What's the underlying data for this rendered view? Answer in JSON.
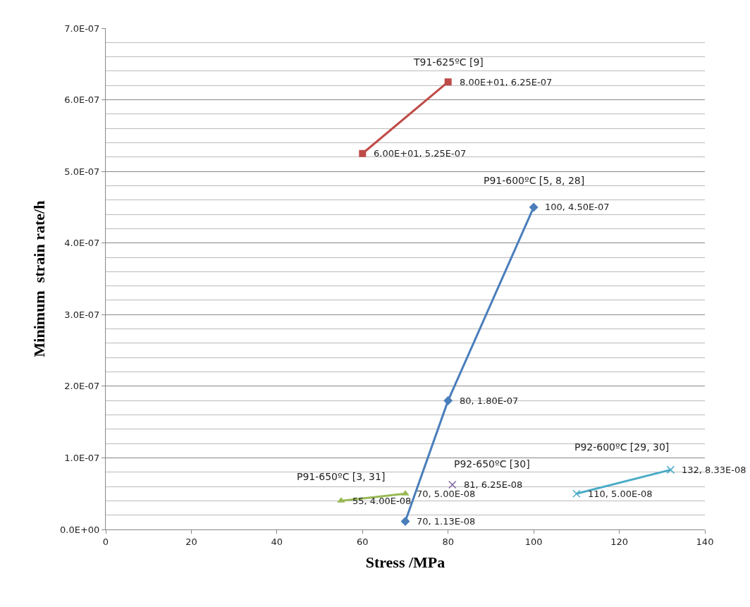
{
  "chart_data": {
    "type": "line",
    "xlabel": "Stress /MPa",
    "ylabel": "Minimum  strain rate/h",
    "xlim": [
      0,
      140
    ],
    "xticks": [
      0,
      20,
      40,
      60,
      80,
      100,
      120,
      140
    ],
    "ylim": [
      0,
      7e-07
    ],
    "yticks": [
      {
        "value": 0,
        "label": "0.0E+00"
      },
      {
        "value": 1e-07,
        "label": "1.0E-07"
      },
      {
        "value": 2e-07,
        "label": "2.0E-07"
      },
      {
        "value": 3e-07,
        "label": "3.0E-07"
      },
      {
        "value": 4e-07,
        "label": "4.0E-07"
      },
      {
        "value": 5e-07,
        "label": "5.0E-07"
      },
      {
        "value": 6e-07,
        "label": "6.0E-07"
      },
      {
        "value": 7e-07,
        "label": "7.0E-07"
      }
    ],
    "grid": "y",
    "series": [
      {
        "name": "T91-625ºC [9]",
        "marker": "square",
        "color": "#be4b48",
        "x": [
          60,
          80
        ],
        "values": [
          5.25e-07,
          6.25e-07
        ]
      },
      {
        "name": "P91-600ºC [5, 8, 28]",
        "marker": "diamond",
        "color": "#4a7ebb",
        "x": [
          70,
          80,
          100
        ],
        "values": [
          1.13e-08,
          1.8e-07,
          4.5e-07
        ]
      },
      {
        "name": "P91-650ºC [3, 31]",
        "marker": "triangle",
        "color": "#98b954",
        "x": [
          55,
          70
        ],
        "values": [
          4e-08,
          5e-08
        ]
      },
      {
        "name": "P92-650ºC [30]",
        "type": "scatter",
        "marker": "cross",
        "color": "#8064a2",
        "x": [
          81
        ],
        "values": [
          6.25e-08
        ]
      },
      {
        "name": "P92-600ºC [29, 30]",
        "marker": "cross",
        "color": "#4bacc6",
        "x": [
          110,
          132
        ],
        "values": [
          5e-08,
          8.33e-08
        ]
      }
    ],
    "annotations": [
      {
        "text": "6.00E+01, 5.25E-07",
        "x": 60,
        "y": 5.25e-07
      },
      {
        "text": "8.00E+01, 6.25E-07",
        "x": 80,
        "y": 6.25e-07
      },
      {
        "text": "70, 1.13E-08",
        "x": 70,
        "y": 1.13e-08
      },
      {
        "text": "80, 1.80E-07",
        "x": 80,
        "y": 1.8e-07
      },
      {
        "text": "100, 4.50E-07",
        "x": 100,
        "y": 4.5e-07
      },
      {
        "text": "55, 4.00E-08",
        "x": 55,
        "y": 4e-08
      },
      {
        "text": "70, 5.00E-08",
        "x": 70,
        "y": 5e-08
      },
      {
        "text": "81, 6.25E-08",
        "x": 81,
        "y": 6.25e-08
      },
      {
        "text": "110, 5.00E-08",
        "x": 110,
        "y": 5e-08
      },
      {
        "text": "132, 8.33E-08",
        "x": 132,
        "y": 8.33e-08
      }
    ]
  }
}
